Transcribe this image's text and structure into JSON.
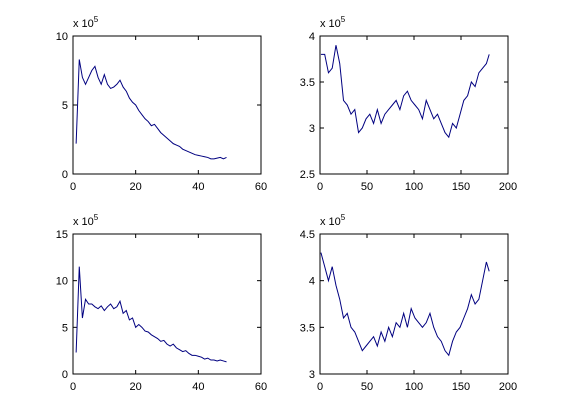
{
  "chart_data": [
    {
      "type": "line",
      "exponent_base": "x 10",
      "exponent": "5",
      "x": [
        1,
        2,
        3,
        4,
        5,
        6,
        7,
        8,
        9,
        10,
        11,
        12,
        13,
        14,
        15,
        16,
        17,
        18,
        19,
        20,
        21,
        22,
        23,
        24,
        25,
        26,
        27,
        28,
        29,
        30,
        31,
        32,
        33,
        34,
        35,
        36,
        37,
        38,
        39,
        40,
        41,
        42,
        43,
        44,
        45,
        46,
        47,
        48,
        49
      ],
      "values": [
        2.2,
        8.3,
        7.0,
        6.5,
        7.0,
        7.5,
        7.8,
        7.0,
        6.5,
        7.2,
        6.5,
        6.2,
        6.3,
        6.5,
        6.8,
        6.3,
        6.0,
        5.5,
        5.2,
        5.0,
        4.6,
        4.3,
        4.0,
        3.8,
        3.5,
        3.6,
        3.3,
        3.0,
        2.8,
        2.6,
        2.4,
        2.2,
        2.1,
        2.0,
        1.8,
        1.7,
        1.6,
        1.5,
        1.4,
        1.35,
        1.3,
        1.25,
        1.2,
        1.1,
        1.1,
        1.15,
        1.2,
        1.1,
        1.2
      ],
      "color": "#000080",
      "xlim": [
        0,
        60
      ],
      "ylim": [
        0,
        10
      ],
      "xticks": [
        0,
        20,
        40,
        60
      ],
      "yticks": [
        0,
        5,
        10
      ]
    },
    {
      "type": "line",
      "exponent_base": "x 10",
      "exponent": "5",
      "x": [
        1,
        5,
        9,
        13,
        17,
        21,
        25,
        29,
        33,
        37,
        41,
        45,
        49,
        53,
        57,
        61,
        65,
        69,
        73,
        77,
        81,
        85,
        89,
        93,
        97,
        101,
        105,
        109,
        113,
        117,
        121,
        125,
        129,
        133,
        137,
        141,
        145,
        149,
        153,
        157,
        161,
        165,
        169,
        173,
        177,
        180
      ],
      "values": [
        3.8,
        3.8,
        3.6,
        3.65,
        3.9,
        3.7,
        3.3,
        3.25,
        3.15,
        3.2,
        2.95,
        3.0,
        3.1,
        3.15,
        3.05,
        3.2,
        3.05,
        3.15,
        3.2,
        3.25,
        3.3,
        3.2,
        3.35,
        3.4,
        3.3,
        3.25,
        3.2,
        3.1,
        3.3,
        3.2,
        3.1,
        3.15,
        3.05,
        2.95,
        2.9,
        3.05,
        3.0,
        3.15,
        3.3,
        3.35,
        3.5,
        3.45,
        3.6,
        3.65,
        3.7,
        3.8
      ],
      "color": "#000080",
      "xlim": [
        0,
        200
      ],
      "ylim": [
        2.5,
        4
      ],
      "xticks": [
        0,
        50,
        100,
        150,
        200
      ],
      "yticks": [
        2.5,
        3,
        3.5,
        4
      ]
    },
    {
      "type": "line",
      "exponent_base": "x 10",
      "exponent": "5",
      "x": [
        1,
        2,
        3,
        4,
        5,
        6,
        7,
        8,
        9,
        10,
        11,
        12,
        13,
        14,
        15,
        16,
        17,
        18,
        19,
        20,
        21,
        22,
        23,
        24,
        25,
        26,
        27,
        28,
        29,
        30,
        31,
        32,
        33,
        34,
        35,
        36,
        37,
        38,
        39,
        40,
        41,
        42,
        43,
        44,
        45,
        46,
        47,
        48,
        49
      ],
      "values": [
        2.3,
        11.5,
        6.0,
        8.0,
        7.5,
        7.5,
        7.2,
        7.0,
        7.3,
        6.8,
        7.2,
        7.5,
        7.0,
        7.2,
        7.8,
        6.5,
        6.8,
        5.8,
        6.0,
        5.0,
        5.3,
        5.0,
        4.6,
        4.5,
        4.2,
        4.0,
        3.8,
        3.5,
        3.6,
        3.2,
        3.0,
        3.2,
        2.8,
        2.6,
        2.4,
        2.5,
        2.2,
        2.0,
        2.0,
        1.9,
        1.8,
        1.6,
        1.7,
        1.5,
        1.5,
        1.4,
        1.5,
        1.4,
        1.3
      ],
      "color": "#000080",
      "xlim": [
        0,
        60
      ],
      "ylim": [
        0,
        15
      ],
      "xticks": [
        0,
        20,
        40,
        60
      ],
      "yticks": [
        0,
        5,
        10,
        15
      ]
    },
    {
      "type": "line",
      "exponent_base": "x 10",
      "exponent": "5",
      "x": [
        1,
        5,
        9,
        13,
        17,
        21,
        25,
        29,
        33,
        37,
        41,
        45,
        49,
        53,
        57,
        61,
        65,
        69,
        73,
        77,
        81,
        85,
        89,
        93,
        97,
        101,
        105,
        109,
        113,
        117,
        121,
        125,
        129,
        133,
        137,
        141,
        145,
        149,
        153,
        157,
        161,
        165,
        169,
        173,
        177,
        180
      ],
      "values": [
        4.3,
        4.15,
        4.0,
        4.15,
        3.95,
        3.8,
        3.6,
        3.65,
        3.5,
        3.45,
        3.35,
        3.25,
        3.3,
        3.35,
        3.4,
        3.3,
        3.45,
        3.35,
        3.5,
        3.4,
        3.55,
        3.5,
        3.65,
        3.5,
        3.7,
        3.6,
        3.55,
        3.5,
        3.55,
        3.65,
        3.5,
        3.4,
        3.35,
        3.25,
        3.2,
        3.35,
        3.45,
        3.5,
        3.6,
        3.7,
        3.85,
        3.75,
        3.8,
        4.0,
        4.2,
        4.1
      ],
      "color": "#000080",
      "xlim": [
        0,
        200
      ],
      "ylim": [
        3,
        4.5
      ],
      "xticks": [
        0,
        50,
        100,
        150,
        200
      ],
      "yticks": [
        3,
        3.5,
        4,
        4.5
      ]
    }
  ]
}
